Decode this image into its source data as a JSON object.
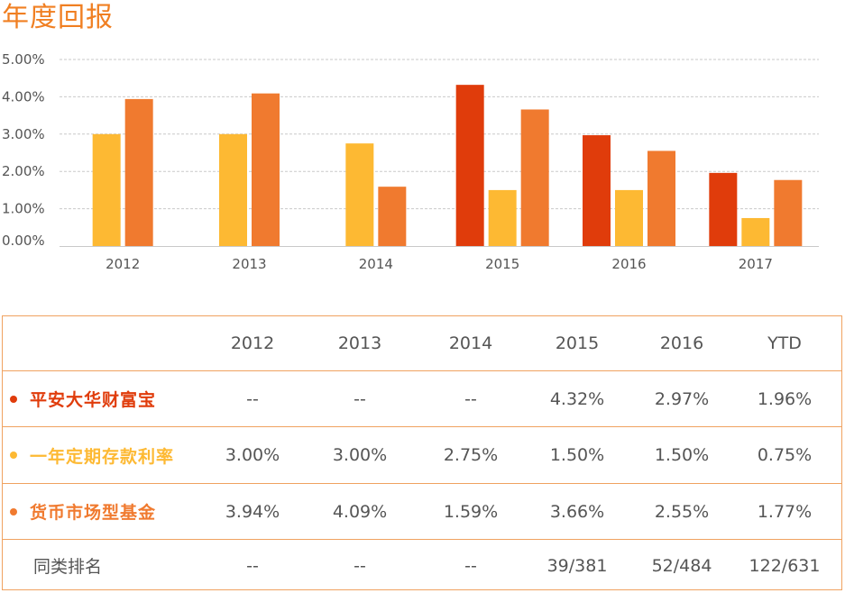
{
  "title": "年度回报",
  "colors": {
    "accent": "#f07f22",
    "series_pingan": "#e03c0b",
    "series_deposit": "#fdb933",
    "series_money": "#f07a2f",
    "border": "#f0a260"
  },
  "chart_data": {
    "type": "bar",
    "categories": [
      "2012",
      "2013",
      "2014",
      "2015",
      "2016",
      "2017"
    ],
    "series": [
      {
        "name": "平安大华财富宝",
        "values": [
          null,
          null,
          null,
          4.32,
          2.97,
          1.96
        ]
      },
      {
        "name": "一年定期存款利率",
        "values": [
          3.0,
          3.0,
          2.75,
          1.5,
          1.5,
          0.75
        ]
      },
      {
        "name": "货币市场型基金",
        "values": [
          3.94,
          4.09,
          1.59,
          3.66,
          2.55,
          1.77
        ]
      }
    ],
    "yticks": [
      "0.00%",
      "1.00%",
      "2.00%",
      "3.00%",
      "4.00%",
      "5.00%"
    ],
    "ylim": [
      0,
      5
    ],
    "grid": true,
    "title": "年度回报",
    "xlabel": "",
    "ylabel": ""
  },
  "table": {
    "headers": [
      "",
      "2012",
      "2013",
      "2014",
      "2015",
      "2016",
      "YTD"
    ],
    "rows": [
      {
        "label": "平安大华财富宝",
        "color": "#e03c0b",
        "bold": true,
        "cells": [
          "--",
          "--",
          "--",
          "4.32%",
          "2.97%",
          "1.96%"
        ]
      },
      {
        "label": "一年定期存款利率",
        "color": "#fdb933",
        "bold": true,
        "cells": [
          "3.00%",
          "3.00%",
          "2.75%",
          "1.50%",
          "1.50%",
          "0.75%"
        ]
      },
      {
        "label": "货币市场型基金",
        "color": "#f07a2f",
        "bold": true,
        "cells": [
          "3.94%",
          "4.09%",
          "1.59%",
          "3.66%",
          "2.55%",
          "1.77%"
        ]
      },
      {
        "label": "同类排名",
        "color": "",
        "bold": false,
        "cells": [
          "--",
          "--",
          "--",
          "39/381",
          "52/484",
          "122/631"
        ]
      }
    ]
  }
}
